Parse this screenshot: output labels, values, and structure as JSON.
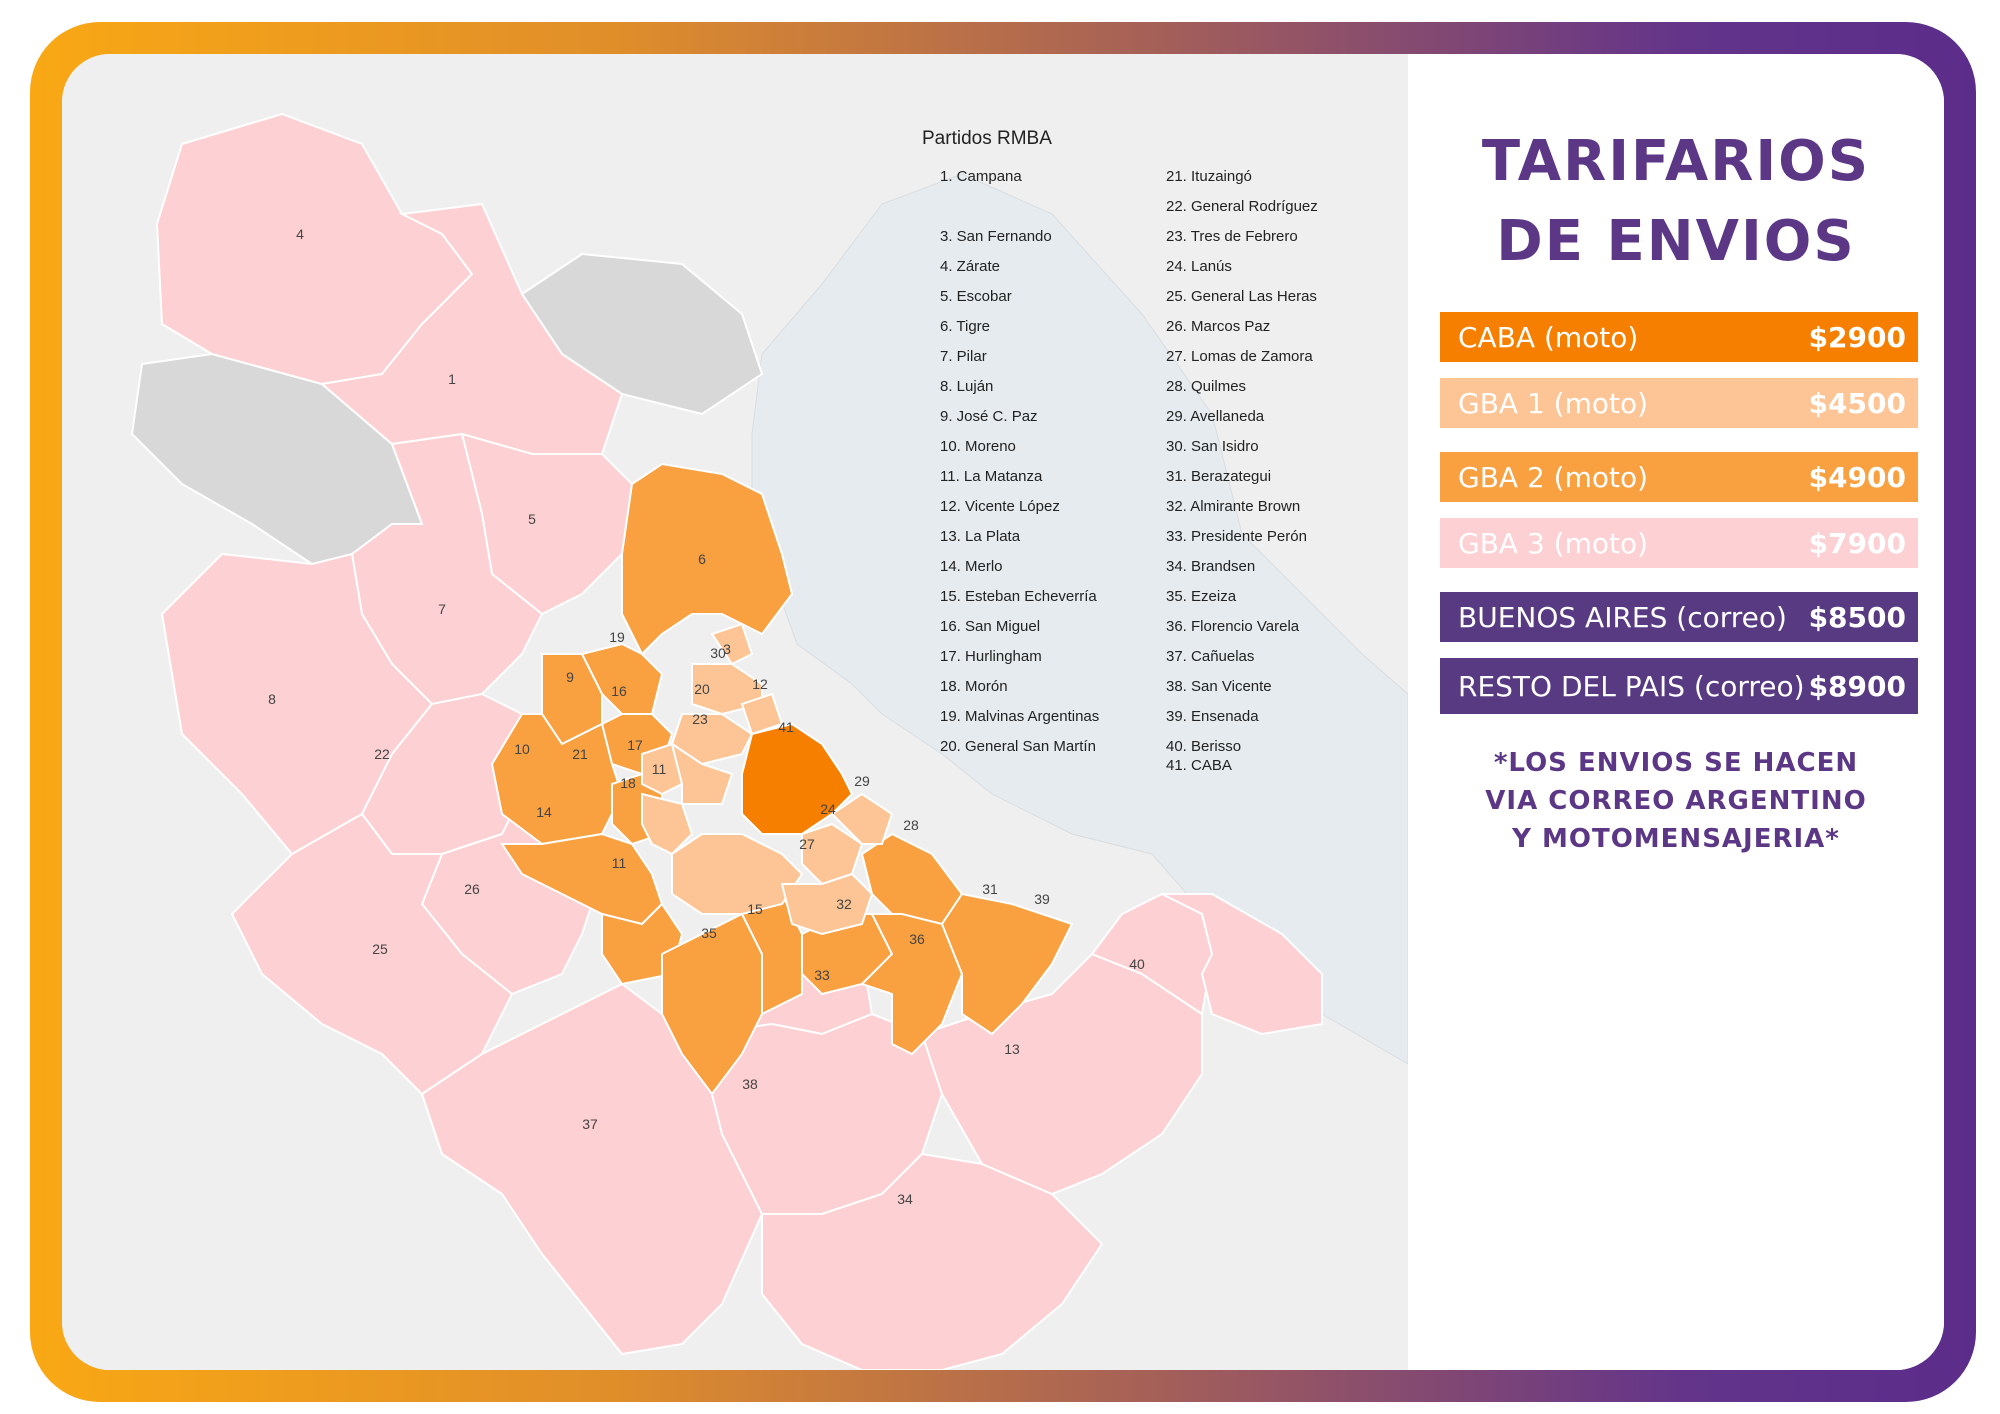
{
  "legend": {
    "title": "Partidos RMBA",
    "col1": [
      "1. Campana",
      "",
      "3. San Fernando",
      "4. Zárate",
      "5. Escobar",
      "6. Tigre",
      "7. Pilar",
      "8. Luján",
      "9. José C. Paz",
      "10. Moreno",
      "11. La Matanza",
      "12. Vicente López",
      "13. La Plata",
      "14. Merlo",
      "15. Esteban Echeverría",
      "16. San Miguel",
      "17. Hurlingham",
      "18. Morón",
      "19. Malvinas Argentinas",
      "20. General San Martín"
    ],
    "col2": [
      "21. Ituzaingó",
      "22. General Rodríguez",
      "23. Tres de Febrero",
      "24. Lanús",
      "25. General Las Heras",
      "26. Marcos Paz",
      "27. Lomas de Zamora",
      "28. Quilmes",
      "29. Avellaneda",
      "30. San Isidro",
      "31. Berazategui",
      "32. Almirante Brown",
      "33. Presidente Perón",
      "34. Brandsen",
      "35. Ezeiza",
      "36. Florencio Varela",
      "37. Cañuelas",
      "38. San Vicente",
      "39. Ensenada",
      "40. Berisso",
      "41. CABA"
    ]
  },
  "panel": {
    "title_line1": "TARIFARIOS",
    "title_line2": "DE ENVIOS",
    "rates": [
      {
        "label": "CABA (moto)",
        "price": "$2900",
        "color": "#f77f00"
      },
      {
        "label": "GBA 1 (moto)",
        "price": "$4500",
        "color": "#fdc595"
      },
      {
        "label": "GBA 2 (moto)",
        "price": "$4900",
        "color": "#f9a040"
      },
      {
        "label": "GBA 3 (moto)",
        "price": "$7900",
        "color": "#fdd0d3"
      },
      {
        "label": "BUENOS AIRES (correo)",
        "price": "$8500",
        "color": "#583a82"
      },
      {
        "label": "RESTO DEL PAIS (correo)",
        "price": "$8900",
        "color": "#583a82"
      }
    ],
    "note_line1": "*LOS ENVIOS SE HACEN",
    "note_line2": "VIA CORREO ARGENTINO",
    "note_line3": "Y MOTOMENSAJERIA*"
  },
  "map_labels": [
    "1",
    "3",
    "4",
    "5",
    "6",
    "7",
    "8",
    "9",
    "10",
    "11",
    "11",
    "12",
    "13",
    "14",
    "15",
    "16",
    "17",
    "18",
    "19",
    "20",
    "21",
    "22",
    "23",
    "24",
    "25",
    "26",
    "27",
    "28",
    "29",
    "30",
    "31",
    "32",
    "33",
    "34",
    "35",
    "36",
    "37",
    "38",
    "39",
    "40",
    "41"
  ],
  "colors": {
    "caba": "#f77f00",
    "gba1": "#fdc595",
    "gba2": "#f9a040",
    "gba3": "#fdd0d3",
    "water": "#e6ebef",
    "accent": "#5b3786"
  }
}
